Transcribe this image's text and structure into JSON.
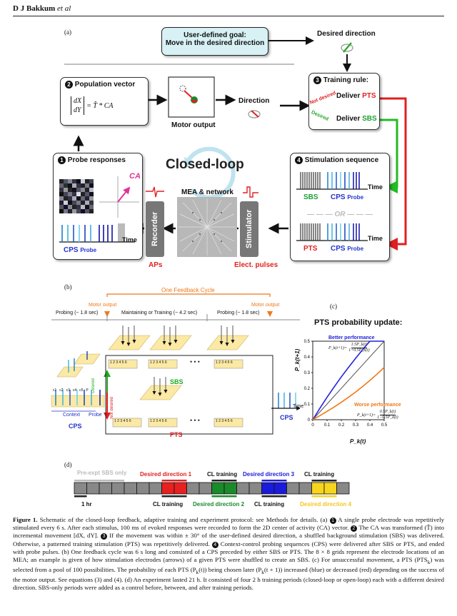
{
  "header": {
    "author": "D J Bakkum",
    "etal": "et al"
  },
  "panel_a": {
    "label": "(a)",
    "goal_title": "User-defined goal:",
    "goal_sub": "Move in the desired direction",
    "desired_direction": "Desired direction",
    "population_vector": "Population vector",
    "equation_lhs_dx": "dX",
    "equation_lhs_dy": "dY",
    "equation_rhs": "= T̂ * CA",
    "motor_output": "Motor output",
    "direction": "Direction",
    "training_rule": "Training rule:",
    "not_desired": "Not desired",
    "desired": "Desired",
    "deliver_pts_prefix": "Deliver ",
    "deliver_pts": "PTS",
    "deliver_sbs_prefix": "Deliver ",
    "deliver_sbs": "SBS",
    "closed_loop": "Closed-loop",
    "probe_responses": "Probe responses",
    "ca": "CA",
    "cps": "CPS",
    "probe": "Probe",
    "time": "Time",
    "mea_network": "MEA & network",
    "recorder": "Recorder",
    "stimulator": "Stimulator",
    "aps": "APs",
    "elect_pulses": "Elect. pulses",
    "stim_sequence": "Stimulation sequence",
    "sbs": "SBS",
    "pts": "PTS",
    "or": "OR",
    "step1": "1",
    "step2": "2",
    "step3": "3",
    "step4": "4"
  },
  "panel_b": {
    "label": "(b)",
    "one_feedback_cycle": "One Feedback Cycle",
    "motor_output_1": "Motor output",
    "motor_output_2": "Motor output",
    "probing_1": "Probing (~ 1.8 sec)",
    "maintaining": "Maintaining or Training (~ 4.2 sec)",
    "probing_2": "Probing (~ 1.8 sec)",
    "context": "Context",
    "probe": "Probe",
    "cps_left": "CPS",
    "cps_right": "CPS",
    "sbs": "SBS",
    "pts": "PTS",
    "desired": "Desired",
    "not_desired": "Not desired",
    "time": "Time",
    "ellipsis": "• • •",
    "pulse_seq": "1 2 3 4 5 6",
    "context_labels": [
      "c1",
      "c2",
      "c3",
      "c4",
      "c5",
      "P"
    ]
  },
  "panel_c": {
    "label": "(c)",
    "title": "PTS probability update:",
    "better": "Better performance",
    "worse": "Worse performance",
    "ylabel": "P_k(t+1)",
    "xlabel": "P_k(t)",
    "eq_better_lhs": "P_k(t+1)=",
    "eq_better_num": "1.5P_k(t)",
    "eq_better_den": "1+0.5P_k(t)",
    "eq_worse_lhs": "P_k(t+1)=",
    "eq_worse_num": "0.5P_k(t)",
    "eq_worse_den": "1−0.5P_k(t)"
  },
  "chart_data": {
    "type": "line",
    "title": "PTS probability update:",
    "xlabel": "P_k(t)",
    "ylabel": "P_k(t+1)",
    "xlim": [
      0,
      0.5
    ],
    "ylim": [
      0,
      0.5
    ],
    "xticks": [
      "0",
      "0.1",
      "0.2",
      "0.3",
      "0.4",
      "0.5"
    ],
    "yticks": [
      "0",
      "0.1",
      "0.2",
      "0.3",
      "0.4",
      "0.5"
    ],
    "series": [
      {
        "name": "Better performance",
        "color": "#2222dd",
        "x": [
          0,
          0.05,
          0.1,
          0.15,
          0.2,
          0.25,
          0.3,
          0.35,
          0.4,
          0.45,
          0.5
        ],
        "y": [
          0,
          0.073,
          0.143,
          0.209,
          0.273,
          0.333,
          0.391,
          0.447,
          0.5,
          0.5,
          0.5
        ]
      },
      {
        "name": "",
        "color": "#555555",
        "x": [
          0,
          0.5
        ],
        "y": [
          0,
          0.5
        ]
      },
      {
        "name": "Worse performance",
        "color": "#f07818",
        "x": [
          0,
          0.05,
          0.1,
          0.15,
          0.2,
          0.25,
          0.3,
          0.35,
          0.4,
          0.45,
          0.5
        ],
        "y": [
          0,
          0.026,
          0.053,
          0.081,
          0.111,
          0.143,
          0.176,
          0.212,
          0.25,
          0.29,
          0.333
        ]
      }
    ],
    "grid": false,
    "legend": "annotations"
  },
  "panel_d": {
    "label": "(d)",
    "top_labels": [
      "Pre-expt SBS only",
      "Desired direction 1",
      "CL training",
      "Desired direction 3",
      "CL training"
    ],
    "bottom_labels": [
      "1 hr",
      "CL training",
      "Desired direction 2",
      "CL training",
      "Desired direction 4"
    ],
    "segment_colors": [
      "#888888",
      "#888888",
      "#888888",
      "#888888",
      "#888888",
      "#888888",
      "#888888",
      "#e82020",
      "#e82020",
      "#888888",
      "#888888",
      "#1a8a2a",
      "#1a8a2a",
      "#888888",
      "#888888",
      "#1a1adc",
      "#1a1adc",
      "#888888",
      "#888888",
      "#f7d51c",
      "#f7d51c",
      "#888888"
    ]
  },
  "caption": {
    "fig": "Figure 1.",
    "s1": " Schematic of the closed-loop feedback, adaptive training and experiment protocol: see Methods for details. (a) ",
    "s2": " A single probe electrode was repetitively stimulated every 6 s. After each stimulus, 100 ms of evoked responses were recorded to form the 2D center of activity (CA) vector. ",
    "s3": " The CA was transformed (T̂) into incremental movement [dX, dY]. ",
    "s4": " If the movement was within ± 30° of the user-defined desired direction, a shuffled background stimulation (SBS) was delivered. Otherwise, a patterned training stimulation (PTS) was repetitively delivered. ",
    "s5": " Context-control probing sequences (CPS) were delivered after SBS or PTS, and ended with probe pulses. (b) One feedback cycle was 6 s long and consisted of a CPS preceded by either SBS or PTS. The 8 × 8 grids represent the electrode locations of an MEA; an example is given of how stimulation electrodes (arrows) of a given PTS were shuffled to create an SBS. (c) For unsuccessful movement, a PTS (PTS",
    "s5b": "k",
    "s6": ") was selected from a pool of 100 possibilities. The probability of each PTS (P",
    "s6b": "k",
    "s7": "(t)) being chosen later (P",
    "s7b": "k",
    "s8": "(t + 1)) increased (blue) or decreased (red) depending on the success of the motor output. See equations (3) and (4). (d) An experiment lasted 21 h. It consisted of four 2 h training periods (closed-loop or open-loop) each with a different desired direction. SBS-only periods were added as a control before, between, and after training periods."
  }
}
